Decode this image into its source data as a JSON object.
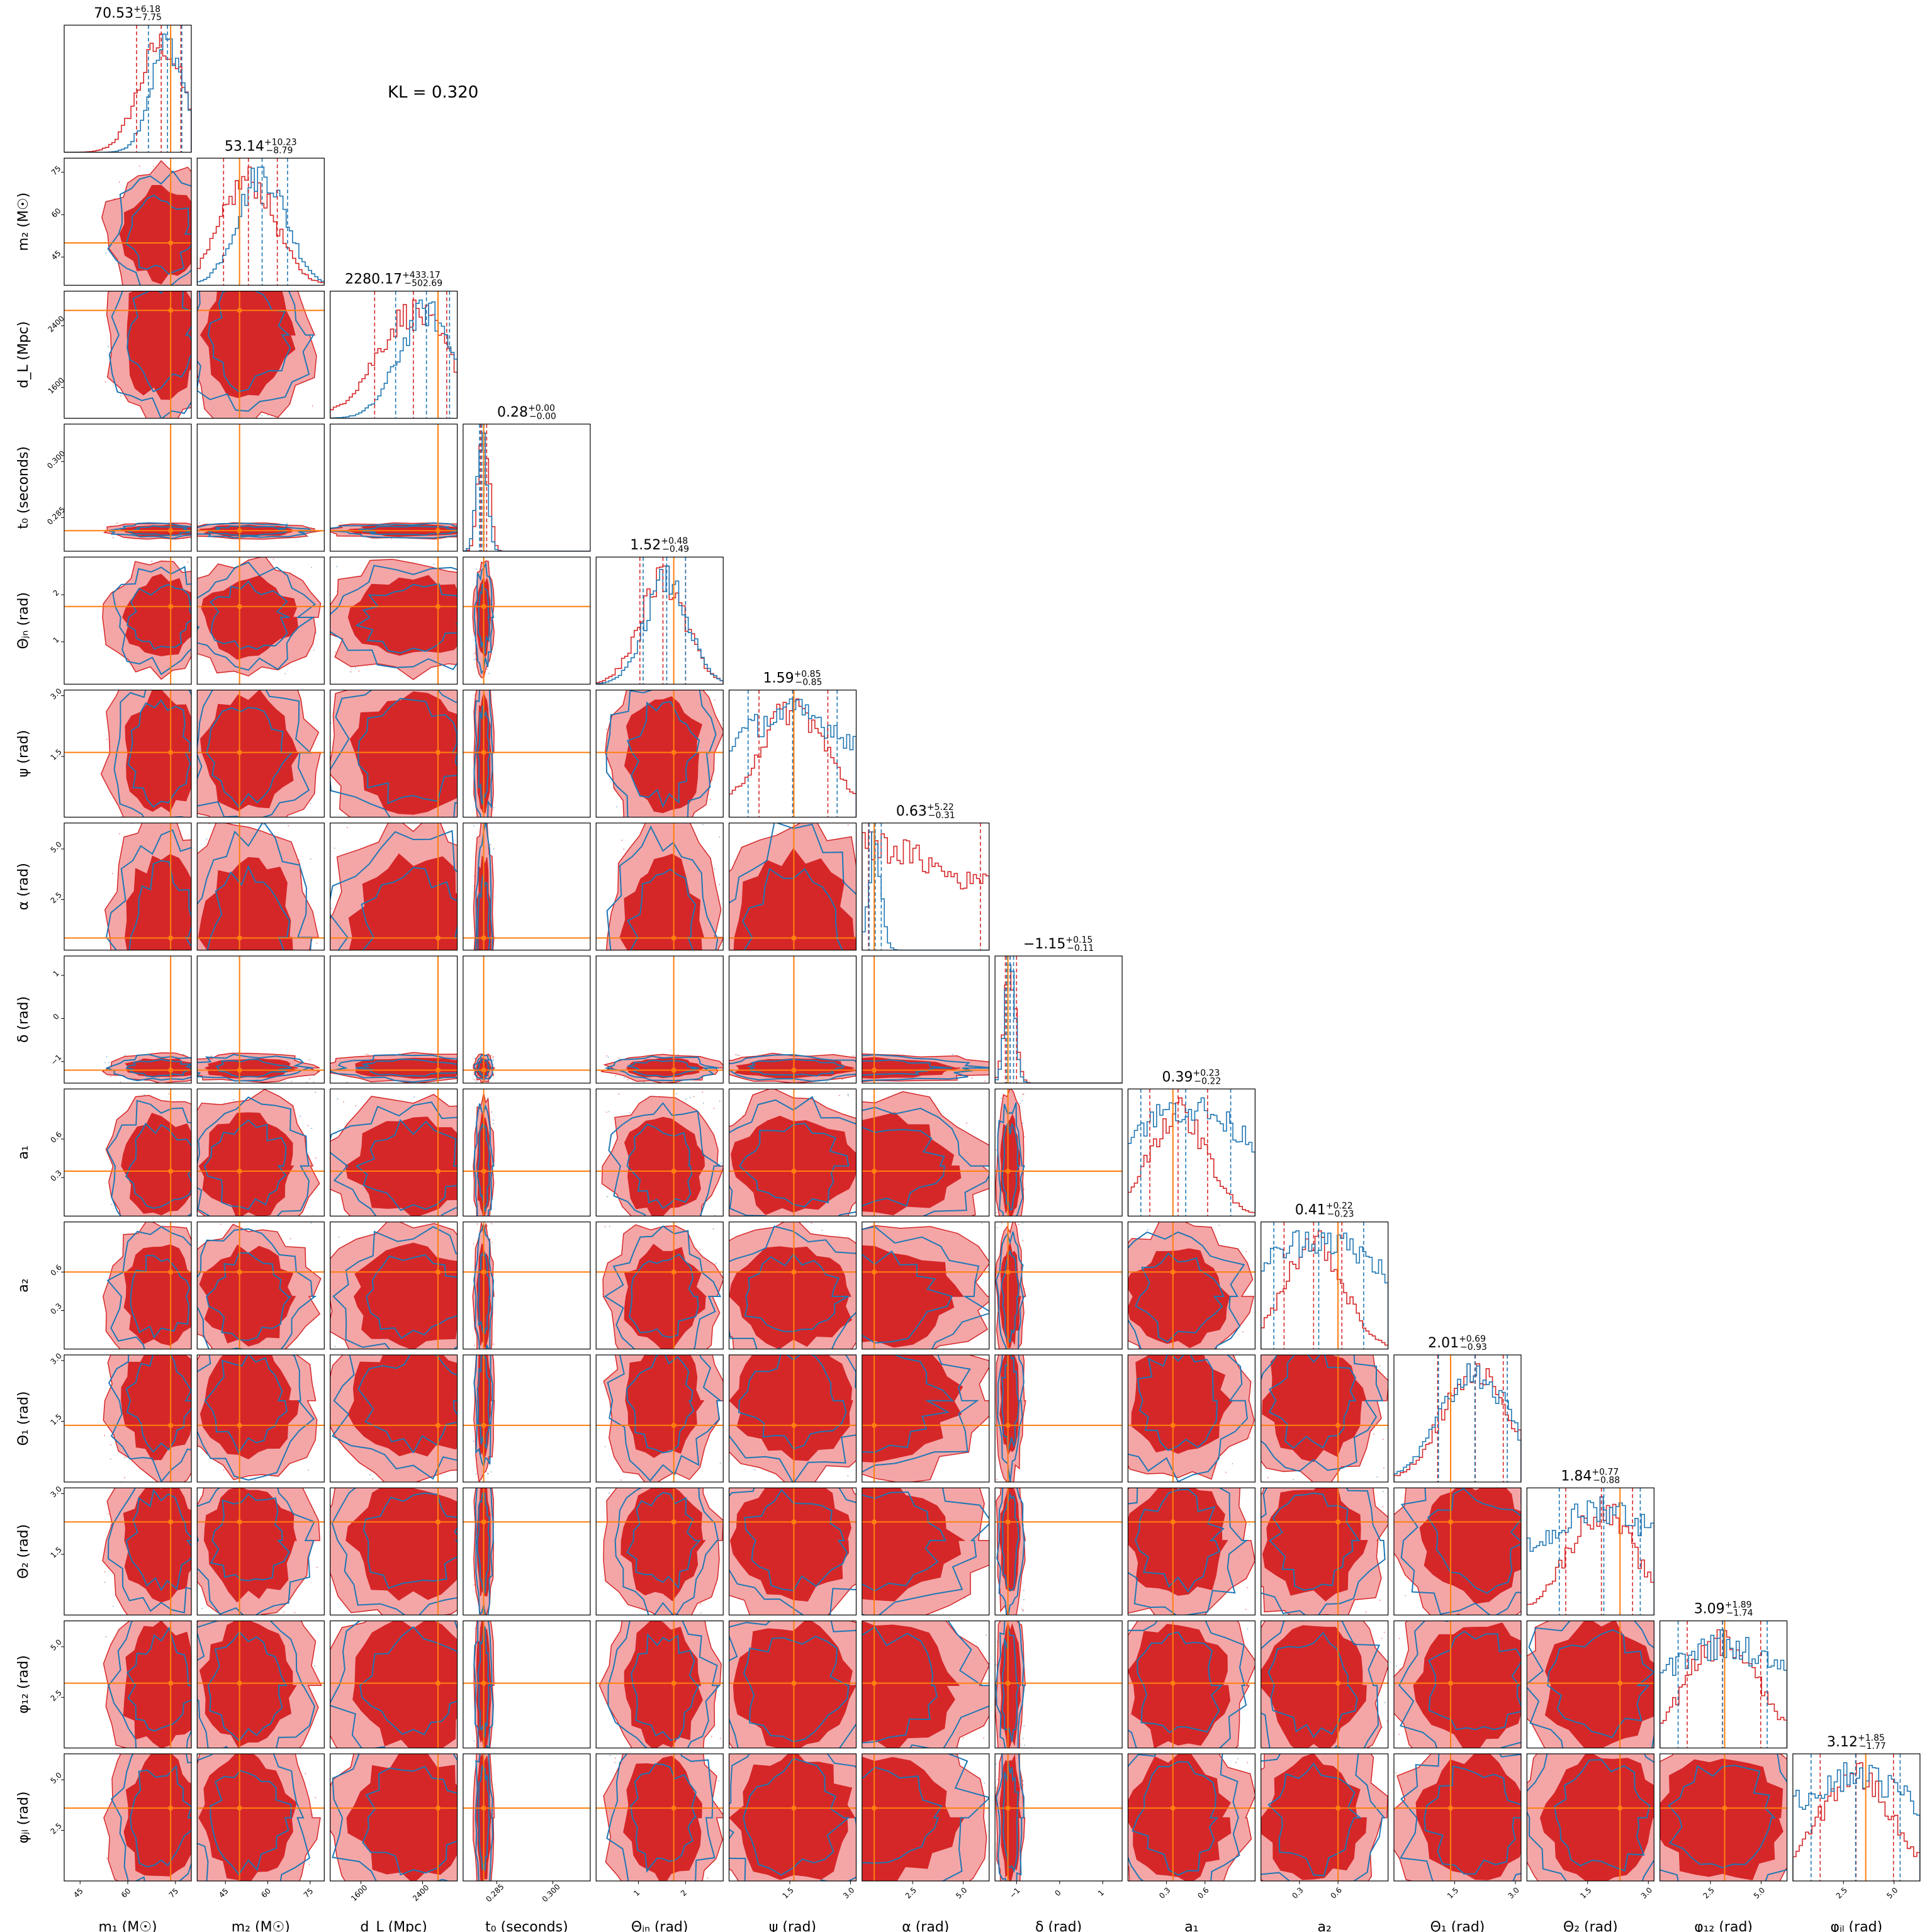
{
  "annotation": {
    "kl_text": "KL = 0.320"
  },
  "colors": {
    "reference": "#1f77b4",
    "model": "#d62728",
    "truth": "#ff7f0e",
    "model_light": "#f4a6a7"
  },
  "chart_data": {
    "type": "corner",
    "description_of_series": [
      "blue histogram/contours",
      "red histogram/filled contours",
      "orange truth lines"
    ],
    "parameters": [
      {
        "label": "m₁ (M☉)",
        "range": [
          40,
          80
        ],
        "ticks": [
          45,
          60,
          75
        ],
        "tick_labels": [
          "45",
          "60",
          "75"
        ],
        "title_text": "70.53",
        "title_sup": "+6.18",
        "title_sub": "−7.75",
        "truth": 73.5,
        "median": 70.53,
        "plus": 6.18,
        "minus": 7.75,
        "ref_median": 72.5,
        "ref_plus": 4.5,
        "ref_minus": 6.0
      },
      {
        "label": "m₂ (M☉)",
        "range": [
          35,
          80
        ],
        "ticks": [
          45,
          60,
          75
        ],
        "tick_labels": [
          "45",
          "60",
          "75"
        ],
        "title_text": "53.14",
        "title_sup": "+10.23",
        "title_sub": "−8.79",
        "truth": 50.0,
        "median": 53.14,
        "plus": 10.23,
        "minus": 8.79,
        "ref_median": 58.0,
        "ref_plus": 9.0,
        "ref_minus": 8.0
      },
      {
        "label": "d_L (Mpc)",
        "range": [
          1200,
          2850
        ],
        "ticks": [
          1600,
          2400
        ],
        "tick_labels": [
          "1600",
          "2400"
        ],
        "title_text": "2280.17",
        "title_sup": "+433.17",
        "title_sub": "−502.69",
        "truth": 2600,
        "median": 2280.17,
        "plus": 433.17,
        "minus": 502.69,
        "ref_median": 2450,
        "ref_plus": 300,
        "ref_minus": 400
      },
      {
        "label": "t₀ (seconds)",
        "range": [
          0.276,
          0.31
        ],
        "ticks": [
          0.285,
          0.3
        ],
        "tick_labels": [
          "0.285",
          "0.300"
        ],
        "title_text": "0.28",
        "title_sup": "+0.00",
        "title_sub": "−0.00",
        "truth": 0.2815,
        "median": 0.2815,
        "plus": 0.0008,
        "minus": 0.0008,
        "ref_median": 0.281,
        "ref_plus": 0.0006,
        "ref_minus": 0.0006
      },
      {
        "label": "Θⱼₙ (rad)",
        "range": [
          0.1,
          2.8
        ],
        "ticks": [
          1,
          2
        ],
        "tick_labels": [
          "1",
          "2"
        ],
        "title_text": "1.52",
        "title_sup": "+0.48",
        "title_sub": "−0.49",
        "truth": 1.75,
        "median": 1.52,
        "plus": 0.48,
        "minus": 0.49,
        "ref_median": 1.6,
        "ref_plus": 0.4,
        "ref_minus": 0.5
      },
      {
        "label": "ψ (rad)",
        "range": [
          0,
          3.14
        ],
        "ticks": [
          1.5,
          3
        ],
        "tick_labels": [
          "1.5",
          "3.0"
        ],
        "title_text": "1.59",
        "title_sup": "+0.85",
        "title_sub": "−0.85",
        "truth": 1.6,
        "median": 1.59,
        "plus": 0.85,
        "minus": 0.85,
        "ref_median": 1.57,
        "ref_plus": 1.1,
        "ref_minus": 1.1
      },
      {
        "label": "α (rad)",
        "range": [
          0,
          6.28
        ],
        "ticks": [
          2.5,
          5
        ],
        "tick_labels": [
          "2.5",
          "5.0"
        ],
        "title_text": "0.63",
        "title_sup": "+5.22",
        "title_sub": "−0.31",
        "truth": 0.6,
        "median": 0.63,
        "plus": 5.22,
        "minus": 0.31,
        "ref_median": 0.65,
        "ref_plus": 0.3,
        "ref_minus": 0.3
      },
      {
        "label": "δ (rad)",
        "range": [
          -1.5,
          1.45
        ],
        "ticks": [
          -1,
          0,
          1
        ],
        "tick_labels": [
          "−1",
          "0",
          "1"
        ],
        "title_text": "−1.15",
        "title_sup": "+0.15",
        "title_sub": "−0.11",
        "truth": -1.2,
        "median": -1.15,
        "plus": 0.15,
        "minus": 0.11,
        "ref_median": -1.15,
        "ref_plus": 0.08,
        "ref_minus": 0.08
      },
      {
        "label": "a₁",
        "range": [
          0,
          0.99
        ],
        "ticks": [
          0.3,
          0.6
        ],
        "tick_labels": [
          "0.3",
          "0.6"
        ],
        "title_text": "0.39",
        "title_sup": "+0.23",
        "title_sub": "−0.22",
        "truth": 0.35,
        "median": 0.39,
        "plus": 0.23,
        "minus": 0.22,
        "ref_median": 0.45,
        "ref_plus": 0.35,
        "ref_minus": 0.35
      },
      {
        "label": "a₂",
        "range": [
          0,
          0.99
        ],
        "ticks": [
          0.3,
          0.6
        ],
        "tick_labels": [
          "0.3",
          "0.6"
        ],
        "title_text": "0.41",
        "title_sup": "+0.22",
        "title_sub": "−0.23",
        "truth": 0.6,
        "median": 0.41,
        "plus": 0.22,
        "minus": 0.23,
        "ref_median": 0.45,
        "ref_plus": 0.35,
        "ref_minus": 0.35
      },
      {
        "label": "Θ₁ (rad)",
        "range": [
          0,
          3.14
        ],
        "ticks": [
          1.5,
          3
        ],
        "tick_labels": [
          "1.5",
          "3.0"
        ],
        "title_text": "2.01",
        "title_sup": "+0.69",
        "title_sub": "−0.93",
        "truth": 1.4,
        "median": 2.01,
        "plus": 0.69,
        "minus": 0.93,
        "ref_median": 2.0,
        "ref_plus": 0.8,
        "ref_minus": 0.9
      },
      {
        "label": "Θ₂ (rad)",
        "range": [
          0,
          3.14
        ],
        "ticks": [
          1.5,
          3
        ],
        "tick_labels": [
          "1.5",
          "3.0"
        ],
        "title_text": "1.84",
        "title_sup": "+0.77",
        "title_sub": "−0.88",
        "truth": 2.3,
        "median": 1.84,
        "plus": 0.77,
        "minus": 0.88,
        "ref_median": 1.9,
        "ref_plus": 0.9,
        "ref_minus": 1.1
      },
      {
        "label": "φ₁₂ (rad)",
        "range": [
          0,
          6.28
        ],
        "ticks": [
          2.5,
          5
        ],
        "tick_labels": [
          "2.5",
          "5.0"
        ],
        "title_text": "3.09",
        "title_sup": "+1.89",
        "title_sub": "−1.74",
        "truth": 3.2,
        "median": 3.09,
        "plus": 1.89,
        "minus": 1.74,
        "ref_median": 3.1,
        "ref_plus": 2.2,
        "ref_minus": 2.2
      },
      {
        "label": "φⱼₗ (rad)",
        "range": [
          0,
          6.28
        ],
        "ticks": [
          2.5,
          5
        ],
        "tick_labels": [
          "2.5",
          "5.0"
        ],
        "title_text": "3.12",
        "title_sup": "+1.85",
        "title_sub": "−1.77",
        "truth": 3.6,
        "median": 3.12,
        "plus": 1.85,
        "minus": 1.77,
        "ref_median": 3.1,
        "ref_plus": 2.2,
        "ref_minus": 2.2
      }
    ]
  }
}
